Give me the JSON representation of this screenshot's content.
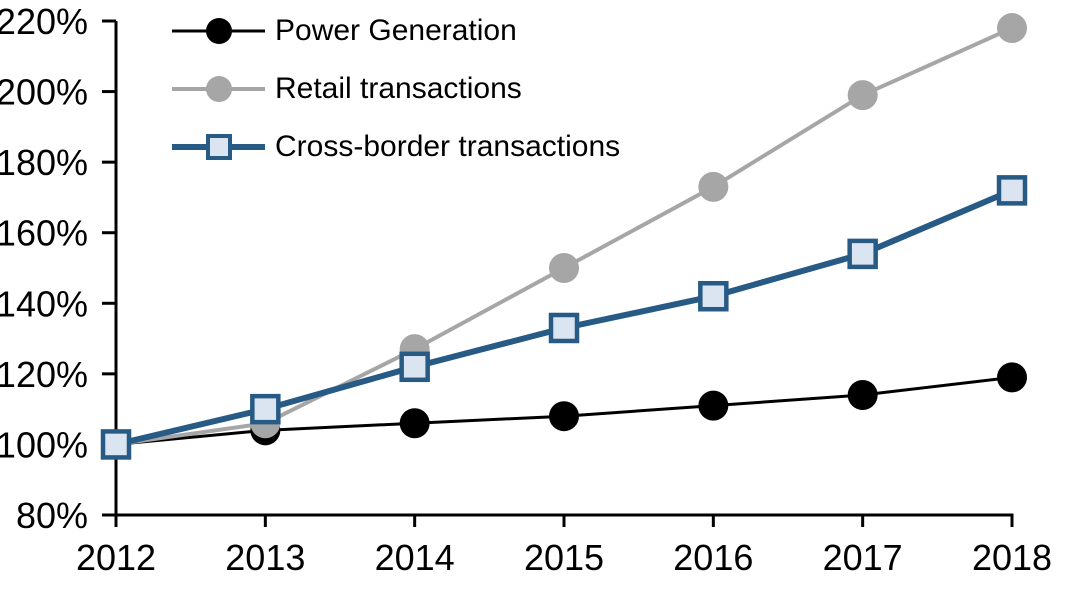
{
  "chart_data": {
    "type": "line",
    "x": [
      2012,
      2013,
      2014,
      2015,
      2016,
      2017,
      2018
    ],
    "x_tick_labels": [
      "2012",
      "2013",
      "2014",
      "2015",
      "2016",
      "2017",
      "2018"
    ],
    "y_tick_labels": [
      "80%",
      "100%",
      "120%",
      "140%",
      "160%",
      "180%",
      "200%",
      "220%"
    ],
    "ylim": [
      80,
      220
    ],
    "y_tick_step": 20,
    "y_unit": "percent",
    "grid": false,
    "title": "",
    "xlabel": "",
    "ylabel": "",
    "legend_position": "top-left",
    "axis_color": "#000000",
    "background_color": "#ffffff",
    "series": [
      {
        "name": "Power Generation",
        "values": [
          100,
          104,
          106,
          108,
          111,
          114,
          119
        ],
        "color": "#000000",
        "marker": "circle",
        "marker_color": "#000000",
        "line_width": 3
      },
      {
        "name": "Retail transactions",
        "values": [
          100,
          106,
          127,
          150,
          173,
          199,
          218
        ],
        "color": "#a6a6a6",
        "marker": "circle",
        "marker_color": "#a6a6a6",
        "line_width": 4
      },
      {
        "name": "Cross-border transactions",
        "values": [
          100,
          110,
          122,
          133,
          142,
          154,
          172
        ],
        "color": "#275a84",
        "marker": "square",
        "marker_fill": "#dbe5f1",
        "line_width": 6
      }
    ]
  }
}
